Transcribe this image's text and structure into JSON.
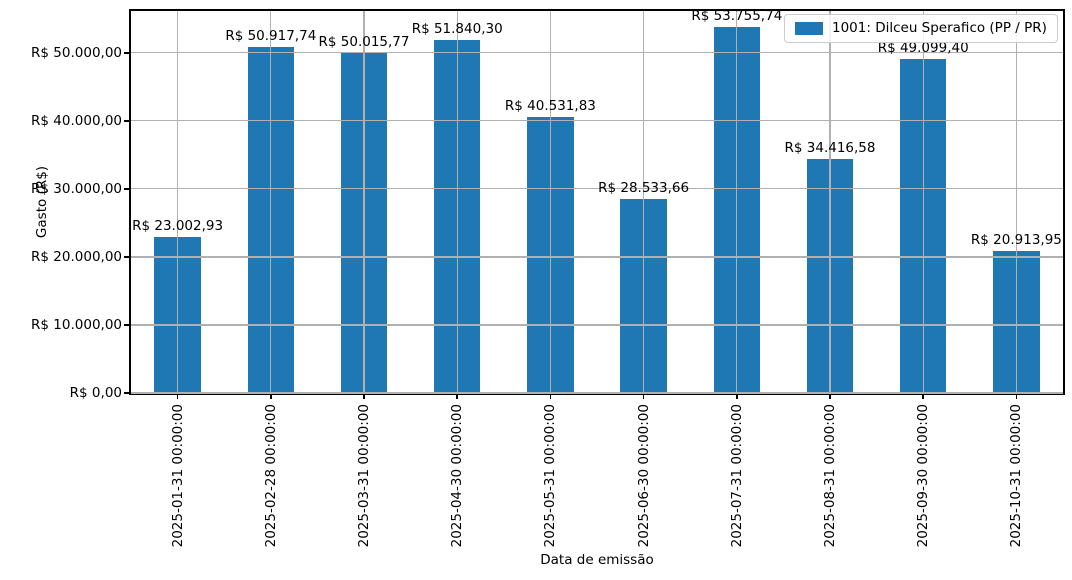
{
  "chart_data": {
    "type": "bar",
    "title": "",
    "xlabel": "Data de emissão",
    "ylabel": "Gasto (R$)",
    "categories": [
      "2025-01-31 00:00:00",
      "2025-02-28 00:00:00",
      "2025-03-31 00:00:00",
      "2025-04-30 00:00:00",
      "2025-05-31 00:00:00",
      "2025-06-30 00:00:00",
      "2025-07-31 00:00:00",
      "2025-08-31 00:00:00",
      "2025-09-30 00:00:00",
      "2025-10-31 00:00:00"
    ],
    "series": [
      {
        "name": "1001: Dilceu Sperafico (PP / PR)",
        "color": "#1f77b4",
        "values": [
          23002.93,
          50917.74,
          50015.77,
          51840.3,
          40531.83,
          28533.66,
          53755.74,
          34416.58,
          49099.4,
          20913.95
        ],
        "value_labels": [
          "R$ 23.002,93",
          "R$ 50.917,74",
          "R$ 50.015,77",
          "R$ 51.840,30",
          "R$ 40.531,83",
          "R$ 28.533,66",
          "R$ 53.755,74",
          "R$ 34.416,58",
          "R$ 49.099,40",
          "R$ 20.913,95"
        ]
      }
    ],
    "yticks": [
      {
        "value": 0,
        "label": "R$ 0,00"
      },
      {
        "value": 10000,
        "label": "R$ 10.000,00"
      },
      {
        "value": 20000,
        "label": "R$ 20.000,00"
      },
      {
        "value": 30000,
        "label": "R$ 30.000,00"
      },
      {
        "value": 40000,
        "label": "R$ 40.000,00"
      },
      {
        "value": 50000,
        "label": "R$ 50.000,00"
      }
    ],
    "ylim": [
      0,
      56150
    ],
    "grid": true,
    "grid_color": "#b0b0b0",
    "legend_position": "upper right",
    "bar_width_fraction": 0.5
  }
}
